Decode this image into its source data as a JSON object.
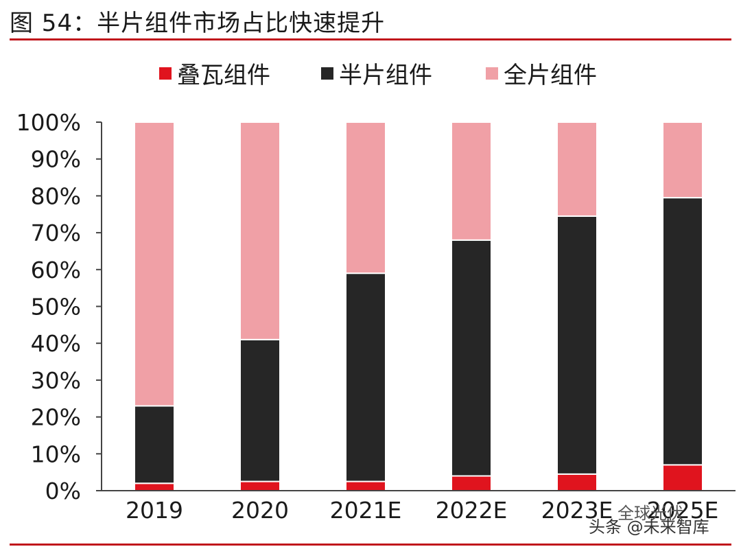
{
  "figure_title": "图 54：半片组件市场占比快速提升",
  "watermark": "头条 @未来智库",
  "watermark2": "全球光伏",
  "colors": {
    "shingled": "#e0141e",
    "half_cell": "#262626",
    "full_cell": "#f0a0a6",
    "rule": "#c0141b"
  },
  "chart_data": {
    "type": "bar",
    "stacked": true,
    "categories": [
      "2019",
      "2020",
      "2021E",
      "2022E",
      "2023E",
      "2025E"
    ],
    "series": [
      {
        "name": "叠瓦组件",
        "color": "#e0141e",
        "values": [
          2,
          2.5,
          2.5,
          4,
          4.5,
          7
        ]
      },
      {
        "name": "半片组件",
        "color": "#262626",
        "values": [
          21,
          38.5,
          56.5,
          64,
          70,
          72.5
        ]
      },
      {
        "name": "全片组件",
        "color": "#f0a0a6",
        "values": [
          77,
          59,
          41,
          32,
          25.5,
          20.5
        ]
      }
    ],
    "ylim": [
      0,
      100
    ],
    "yticks": [
      "0%",
      "10%",
      "20%",
      "30%",
      "40%",
      "50%",
      "60%",
      "70%",
      "80%",
      "90%",
      "100%"
    ],
    "legend_position": "top",
    "grid": false
  }
}
